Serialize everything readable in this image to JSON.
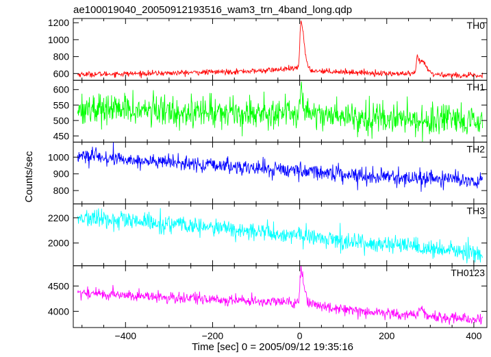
{
  "chart_data": {
    "type": "line",
    "title": "ae100019040_20050912193516_wam3_trn_4band_long.qdp",
    "xlabel": "Time [sec] 0 = 2005/09/12 19:35:16",
    "ylabel": "Counts/sec",
    "xlim": [
      -520,
      430
    ],
    "x_ticks": [
      -400,
      -200,
      0,
      200,
      400
    ],
    "x_tick_labels": [
      "−400",
      "−200",
      "0",
      "200",
      "400"
    ],
    "panels": [
      {
        "name": "TH0",
        "color": "#ff0000",
        "ylim": [
          520,
          1250
        ],
        "yticks": [
          600,
          800,
          1000,
          1200
        ],
        "baseline": [
          [
            -510,
            590
          ],
          [
            -300,
            605
          ],
          [
            -100,
            630
          ],
          [
            -5,
            660
          ],
          [
            30,
            635
          ],
          [
            100,
            620
          ],
          [
            200,
            600
          ],
          [
            300,
            590
          ],
          [
            420,
            570
          ]
        ],
        "noise_sd": 16,
        "peaks": [
          {
            "center": 3,
            "amplitude": 560,
            "rise": 2.5,
            "decay": 7
          },
          {
            "center": 270,
            "amplitude": 210,
            "rise": 2,
            "decay": 6
          },
          {
            "center": 282,
            "amplitude": 130,
            "rise": 3,
            "decay": 10
          }
        ]
      },
      {
        "name": "TH1",
        "color": "#00ff00",
        "ylim": [
          430,
          630
        ],
        "yticks": [
          450,
          500,
          550,
          600
        ],
        "baseline": [
          [
            -510,
            540
          ],
          [
            -300,
            530
          ],
          [
            -100,
            525
          ],
          [
            -5,
            525
          ],
          [
            100,
            515
          ],
          [
            300,
            500
          ],
          [
            420,
            490
          ]
        ],
        "noise_sd": 25,
        "peaks": [
          {
            "center": 3,
            "amplitude": 75,
            "rise": 2,
            "decay": 6
          }
        ]
      },
      {
        "name": "TH2",
        "color": "#0000ff",
        "ylim": [
          720,
          1090
        ],
        "yticks": [
          800,
          900,
          1000
        ],
        "baseline": [
          [
            -510,
            1010
          ],
          [
            -400,
            985
          ],
          [
            -200,
            950
          ],
          [
            0,
            920
          ],
          [
            200,
            880
          ],
          [
            420,
            860
          ]
        ],
        "noise_sd": 23,
        "peaks": []
      },
      {
        "name": "TH3",
        "color": "#00ffff",
        "ylim": [
          1820,
          2310
        ],
        "yticks": [
          2000,
          2200
        ],
        "baseline": [
          [
            -510,
            2200
          ],
          [
            -300,
            2150
          ],
          [
            -100,
            2090
          ],
          [
            100,
            2020
          ],
          [
            300,
            1950
          ],
          [
            420,
            1920
          ]
        ],
        "noise_sd": 36,
        "peaks": []
      },
      {
        "name": "TH0123",
        "color": "#ff00ff",
        "ylim": [
          3680,
          4900
        ],
        "yticks": [
          4000,
          4500
        ],
        "baseline": [
          [
            -510,
            4370
          ],
          [
            -300,
            4270
          ],
          [
            -100,
            4200
          ],
          [
            -5,
            4170
          ],
          [
            100,
            4050
          ],
          [
            250,
            3920
          ],
          [
            420,
            3840
          ]
        ],
        "noise_sd": 55,
        "peaks": [
          {
            "center": 3,
            "amplitude": 620,
            "rise": 2.5,
            "decay": 7
          },
          {
            "center": 275,
            "amplitude": 140,
            "rise": 3,
            "decay": 10
          }
        ]
      }
    ],
    "sample_step": 1
  }
}
